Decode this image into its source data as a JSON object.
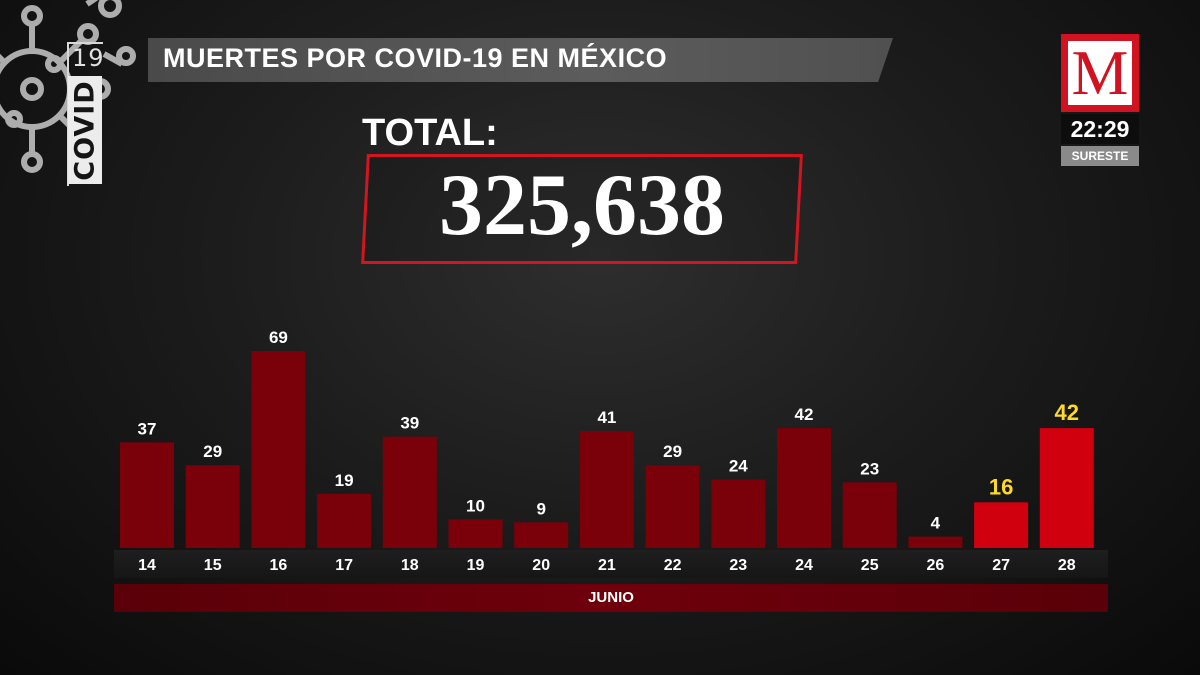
{
  "header": {
    "covid_number": "19",
    "covid_word": "COVID",
    "title": "MUERTES POR COVID-19 EN MÉXICO"
  },
  "total": {
    "label": "TOTAL:",
    "value": "325,638"
  },
  "broadcast": {
    "logo_letter": "M",
    "time": "22:29",
    "region": "SURESTE"
  },
  "colors": {
    "bar_normal": "#7a0009",
    "bar_highlight": "#d0000f",
    "label_normal": "#ffffff",
    "label_highlight": "#ffd928"
  },
  "chart_data": {
    "type": "bar",
    "title": "MUERTES POR COVID-19 EN MÉXICO",
    "categories": [
      "14",
      "15",
      "16",
      "17",
      "18",
      "19",
      "20",
      "21",
      "22",
      "23",
      "24",
      "25",
      "26",
      "27",
      "28"
    ],
    "values": [
      37,
      29,
      69,
      19,
      39,
      10,
      9,
      41,
      29,
      24,
      42,
      23,
      4,
      16,
      42
    ],
    "highlighted": [
      false,
      false,
      false,
      false,
      false,
      false,
      false,
      false,
      false,
      false,
      false,
      false,
      false,
      true,
      true
    ],
    "xlabel": "JUNIO",
    "ylim": [
      0,
      69
    ],
    "grid": false,
    "data_labels": true
  }
}
